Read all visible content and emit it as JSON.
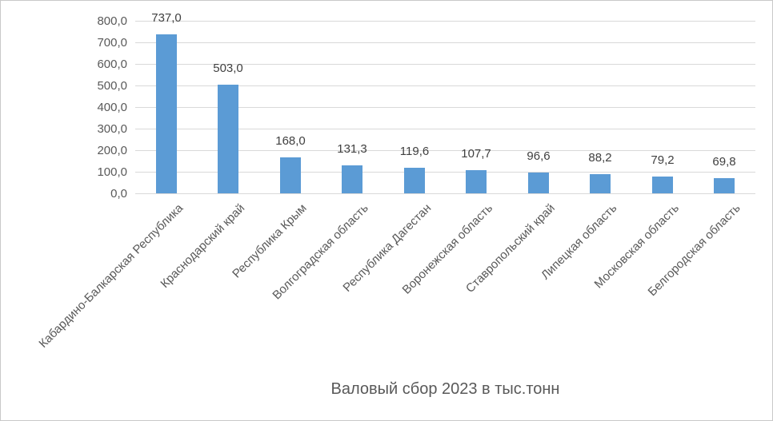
{
  "chart_data": {
    "type": "bar",
    "title": "Валовый сбор 2023 в тыс.тонн",
    "xlabel": "Валовый сбор 2023 в тыс.тонн",
    "ylabel": "",
    "categories": [
      "Кабардино-Балкарская Республика",
      "Краснодарский край",
      "Республика Крым",
      "Волгоградская область",
      "Республика Дагестан",
      "Воронежская область",
      "Ставропольский край",
      "Липецкая область",
      "Московская область",
      "Белгородская область"
    ],
    "values": [
      737.0,
      503.0,
      168.0,
      131.3,
      119.6,
      107.7,
      96.6,
      88.2,
      79.2,
      69.8
    ],
    "value_labels": [
      "737,0",
      "503,0",
      "168,0",
      "131,3",
      "119,6",
      "107,7",
      "96,6",
      "88,2",
      "79,2",
      "69,8"
    ],
    "ylim": [
      0,
      800
    ],
    "y_tick_step": 100,
    "y_tick_labels_top_to_bottom": [
      "800,0",
      "700,0",
      "600,0",
      "500,0",
      "400,0",
      "300,0",
      "200,0",
      "100,0",
      "0,0"
    ],
    "grid": true,
    "legend": "none",
    "bar_color": "#5B9BD5",
    "gridline_color": "#D9D9D9",
    "axis_label_color": "#595959",
    "value_label_color": "#404040"
  }
}
